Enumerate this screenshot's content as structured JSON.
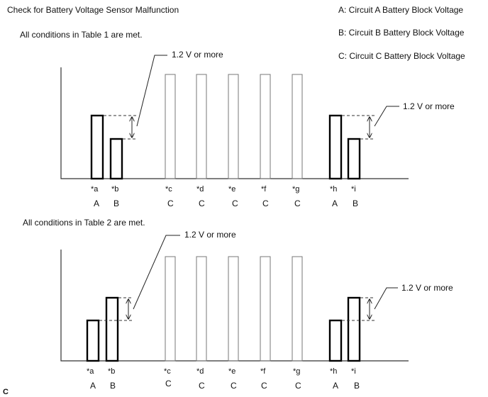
{
  "title": "Check for Battery Voltage Sensor Malfunction",
  "legend": {
    "a": "A: Circuit A Battery Block Voltage",
    "b": "B: Circuit B Battery Block Voltage",
    "c": "C: Circuit C Battery Block Voltage"
  },
  "footer": "C",
  "panels": [
    {
      "condition": "All conditions in Table 1 are met.",
      "callout_left": "1.2 V or more",
      "callout_right": "1.2 V or more",
      "bars": [
        {
          "ref": "*a",
          "circuit": "A",
          "level": "mid-high"
        },
        {
          "ref": "*b",
          "circuit": "B",
          "level": "low"
        },
        {
          "ref": "*c",
          "circuit": "C",
          "level": "max"
        },
        {
          "ref": "*d",
          "circuit": "C",
          "level": "max"
        },
        {
          "ref": "*e",
          "circuit": "C",
          "level": "max"
        },
        {
          "ref": "*f",
          "circuit": "C",
          "level": "max"
        },
        {
          "ref": "*g",
          "circuit": "C",
          "level": "max"
        },
        {
          "ref": "*h",
          "circuit": "A",
          "level": "mid-high"
        },
        {
          "ref": "*i",
          "circuit": "B",
          "level": "low"
        }
      ]
    },
    {
      "condition": "All conditions in Table 2 are met.",
      "callout_left": "1.2 V or more",
      "callout_right": "1.2 V or more",
      "bars": [
        {
          "ref": "*a",
          "circuit": "A",
          "level": "low"
        },
        {
          "ref": "*b",
          "circuit": "B",
          "level": "mid-high"
        },
        {
          "ref": "*c",
          "circuit": "C",
          "level": "max"
        },
        {
          "ref": "*d",
          "circuit": "C",
          "level": "max"
        },
        {
          "ref": "*e",
          "circuit": "C",
          "level": "max"
        },
        {
          "ref": "*f",
          "circuit": "C",
          "level": "max"
        },
        {
          "ref": "*g",
          "circuit": "C",
          "level": "max"
        },
        {
          "ref": "*h",
          "circuit": "A",
          "level": "low"
        },
        {
          "ref": "*i",
          "circuit": "B",
          "level": "mid-high"
        }
      ]
    }
  ]
}
